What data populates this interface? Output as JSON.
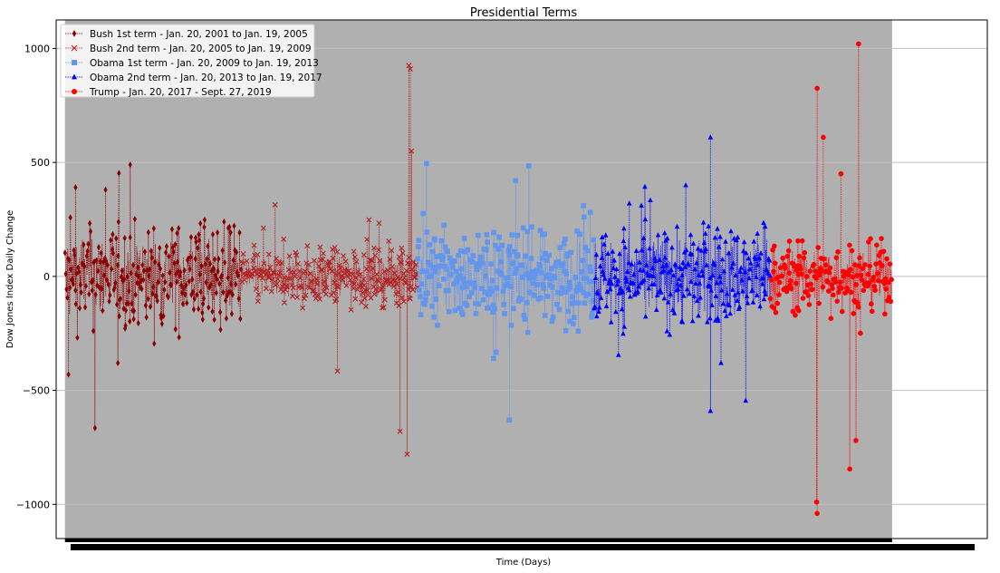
{
  "chart_data": {
    "type": "line",
    "title": "Presidential Terms",
    "xlabel": "Time (Days)",
    "ylabel": "Dow Jones Index Daily Change",
    "ylim": [
      -1150,
      1125
    ],
    "xlim": [
      -50,
      5230
    ],
    "yticks": [
      -1000,
      -500,
      0,
      500,
      1000
    ],
    "ytick_labels": [
      "−1000",
      "−500",
      "0",
      "500",
      "1000"
    ],
    "grid": "horizontal",
    "legend_position": "top-left",
    "plot_background": "#b0b0b0",
    "series": [
      {
        "name": "Bush 1st term - Jan. 20, 2001 to Jan. 19, 2005",
        "color": "#8b0000",
        "marker": "diamond",
        "start_day": 0,
        "end_day": 1000,
        "typical_amplitude": 120,
        "extremes": [
          [
            20,
            -430
          ],
          [
            60,
            390
          ],
          [
            170,
            -665
          ],
          [
            370,
            490
          ],
          [
            230,
            380
          ],
          [
            300,
            -380
          ]
        ]
      },
      {
        "name": "Bush 2nd term - Jan. 20, 2005 to Jan. 19, 2009",
        "color": "#b22222",
        "marker": "x",
        "start_day": 1000,
        "end_day": 2000,
        "typical_amplitude": 65,
        "extremes": [
          [
            1950,
            925
          ],
          [
            1958,
            910
          ],
          [
            1940,
            -780
          ],
          [
            1965,
            550
          ],
          [
            1545,
            -415
          ],
          [
            1900,
            -680
          ]
        ]
      },
      {
        "name": "Obama 1st term - Jan. 20, 2009 to Jan. 19, 2013",
        "color": "#6495ed",
        "marker": "square",
        "start_day": 2000,
        "end_day": 3000,
        "typical_amplitude": 105,
        "extremes": [
          [
            2050,
            495
          ],
          [
            2630,
            485
          ],
          [
            2555,
            420
          ],
          [
            2520,
            -630
          ],
          [
            2430,
            -360
          ],
          [
            2940,
            310
          ]
        ]
      },
      {
        "name": "Obama 2nd term - Jan. 20, 2013 to Jan. 19, 2017",
        "color": "#0000ff",
        "marker": "triangle",
        "start_day": 3000,
        "end_day": 4000,
        "typical_amplitude": 120,
        "extremes": [
          [
            3660,
            610
          ],
          [
            3660,
            -590
          ],
          [
            3860,
            -545
          ],
          [
            3520,
            400
          ],
          [
            3200,
            320
          ],
          [
            3720,
            -380
          ]
        ]
      },
      {
        "name": "Trump - Jan. 20, 2017 - Sept. 27, 2019",
        "color": "#ff0000",
        "marker": "circle",
        "start_day": 4000,
        "end_day": 4690,
        "typical_amplitude": 80,
        "extremes": [
          [
            4265,
            825
          ],
          [
            4265,
            -1040
          ],
          [
            4262,
            -990
          ],
          [
            4500,
            1020
          ],
          [
            4450,
            -845
          ],
          [
            4485,
            -720
          ],
          [
            4300,
            610
          ],
          [
            4400,
            450
          ]
        ]
      }
    ]
  }
}
